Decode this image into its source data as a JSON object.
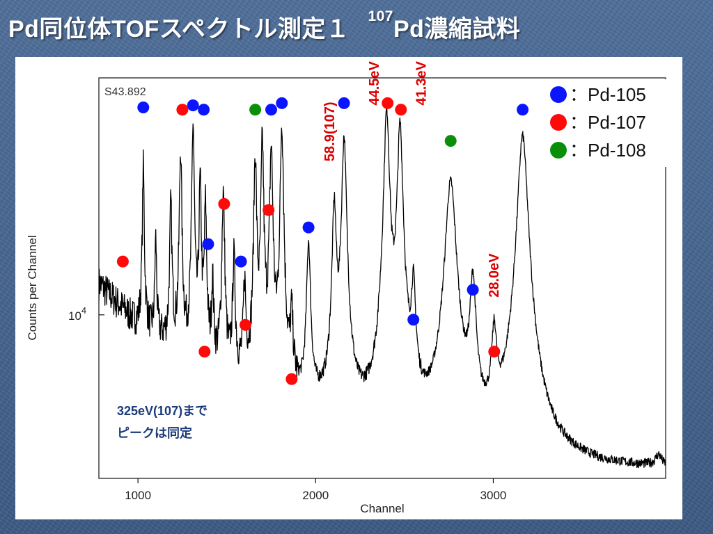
{
  "title": {
    "main": "Pd同位体TOFスペクトル測定１",
    "isotope_sup": "107",
    "tail": "Pd濃縮試料"
  },
  "chart_data": {
    "type": "line",
    "run_label": "S43.892",
    "xlabel": "Channel",
    "ylabel": "Counts per Channel",
    "x_ticks": [
      1000,
      2000,
      3000
    ],
    "x_tick_labels": [
      "1000",
      "2000",
      "3000"
    ],
    "xlim": [
      780,
      3970
    ],
    "y_scale": "log",
    "ylim": [
      1800,
      120000
    ],
    "y_tick": {
      "base": "10",
      "exponent": "4",
      "value": 10000
    },
    "colors": {
      "Pd-105": "#0a14ff",
      "Pd-107": "#ff0a0a",
      "Pd-108": "#0b8f0b",
      "annotation": "#dd0000",
      "note": "#1b3a7a"
    },
    "legend": {
      "placement": "top-right",
      "entries": [
        {
          "marker": "Pd-105",
          "label": "：Pd-105"
        },
        {
          "marker": "Pd-107",
          "label": "：Pd-107"
        },
        {
          "marker": "Pd-108",
          "label": "：Pd-108"
        }
      ]
    },
    "markers": [
      {
        "isotope": "Pd-105",
        "x": 1030,
        "y": 88000
      },
      {
        "isotope": "Pd-105",
        "x": 1310,
        "y": 90000
      },
      {
        "isotope": "Pd-105",
        "x": 1810,
        "y": 92000
      },
      {
        "isotope": "Pd-105",
        "x": 2160,
        "y": 92000
      },
      {
        "isotope": "Pd-105",
        "x": 1370,
        "y": 86000
      },
      {
        "isotope": "Pd-105",
        "x": 1750,
        "y": 86000
      },
      {
        "isotope": "Pd-105",
        "x": 1395,
        "y": 21000
      },
      {
        "isotope": "Pd-105",
        "x": 1580,
        "y": 17500
      },
      {
        "isotope": "Pd-105",
        "x": 1960,
        "y": 25000
      },
      {
        "isotope": "Pd-105",
        "x": 2550,
        "y": 9500
      },
      {
        "isotope": "Pd-105",
        "x": 2885,
        "y": 13000
      },
      {
        "isotope": "Pd-105",
        "x": 3165,
        "y": 86000
      },
      {
        "isotope": "Pd-107",
        "x": 915,
        "y": 17500
      },
      {
        "isotope": "Pd-107",
        "x": 1250,
        "y": 86000
      },
      {
        "isotope": "Pd-107",
        "x": 1485,
        "y": 32000
      },
      {
        "isotope": "Pd-107",
        "x": 1735,
        "y": 30000
      },
      {
        "isotope": "Pd-107",
        "x": 1375,
        "y": 6800
      },
      {
        "isotope": "Pd-107",
        "x": 1605,
        "y": 9000
      },
      {
        "isotope": "Pd-107",
        "x": 1865,
        "y": 5100
      },
      {
        "isotope": "Pd-107",
        "x": 2405,
        "y": 92000
      },
      {
        "isotope": "Pd-107",
        "x": 2480,
        "y": 86000
      },
      {
        "isotope": "Pd-107",
        "x": 3005,
        "y": 6800
      },
      {
        "isotope": "Pd-108",
        "x": 1660,
        "y": 86000
      },
      {
        "isotope": "Pd-108",
        "x": 2760,
        "y": 62000
      }
    ],
    "annotations": [
      {
        "text": "58.9(107)",
        "x": 2105,
        "y": 50000
      },
      {
        "text": "44.5eV",
        "x": 2355,
        "y": 90000
      },
      {
        "text": "41.3eV",
        "x": 2620,
        "y": 90000
      },
      {
        "text": "28.0eV",
        "x": 3030,
        "y": 12000
      }
    ],
    "note": [
      "325eV(107)まで",
      "ピークは同定"
    ],
    "curve": {
      "baseline": [
        [
          780,
          14000
        ],
        [
          900,
          11000
        ],
        [
          1000,
          9000
        ],
        [
          1200,
          7000
        ],
        [
          1400,
          5600
        ],
        [
          1600,
          4700
        ],
        [
          1800,
          4000
        ],
        [
          2000,
          3500
        ],
        [
          2200,
          3050
        ],
        [
          2400,
          2750
        ],
        [
          2600,
          2500
        ],
        [
          2800,
          2250
        ],
        [
          3000,
          2150
        ],
        [
          3200,
          2050
        ],
        [
          3400,
          2000
        ],
        [
          3600,
          1950
        ],
        [
          3800,
          1950
        ],
        [
          3970,
          1950
        ]
      ],
      "peaks": [
        {
          "x": 1030,
          "y": 48000,
          "w": 5
        },
        {
          "x": 1100,
          "y": 22000,
          "w": 5
        },
        {
          "x": 1185,
          "y": 32000,
          "w": 6
        },
        {
          "x": 1240,
          "y": 58000,
          "w": 6
        },
        {
          "x": 1310,
          "y": 75000,
          "w": 6
        },
        {
          "x": 1350,
          "y": 40000,
          "w": 6
        },
        {
          "x": 1380,
          "y": 32000,
          "w": 6
        },
        {
          "x": 1420,
          "y": 14000,
          "w": 6
        },
        {
          "x": 1480,
          "y": 36000,
          "w": 7
        },
        {
          "x": 1540,
          "y": 18000,
          "w": 7
        },
        {
          "x": 1600,
          "y": 13500,
          "w": 7
        },
        {
          "x": 1660,
          "y": 54000,
          "w": 7
        },
        {
          "x": 1700,
          "y": 62000,
          "w": 7
        },
        {
          "x": 1750,
          "y": 58000,
          "w": 8
        },
        {
          "x": 1810,
          "y": 76000,
          "w": 8
        },
        {
          "x": 1865,
          "y": 9000,
          "w": 8
        },
        {
          "x": 1960,
          "y": 21000,
          "w": 10
        },
        {
          "x": 2105,
          "y": 31000,
          "w": 11
        },
        {
          "x": 2160,
          "y": 64000,
          "w": 12
        },
        {
          "x": 2400,
          "y": 85000,
          "w": 14
        },
        {
          "x": 2475,
          "y": 72000,
          "w": 14
        },
        {
          "x": 2550,
          "y": 12000,
          "w": 12
        },
        {
          "x": 2760,
          "y": 40000,
          "w": 28
        },
        {
          "x": 2885,
          "y": 13500,
          "w": 16
        },
        {
          "x": 3005,
          "y": 7200,
          "w": 14
        },
        {
          "x": 3165,
          "y": 65000,
          "w": 26
        },
        {
          "x": 3930,
          "y": 2200,
          "w": 20
        }
      ]
    }
  }
}
